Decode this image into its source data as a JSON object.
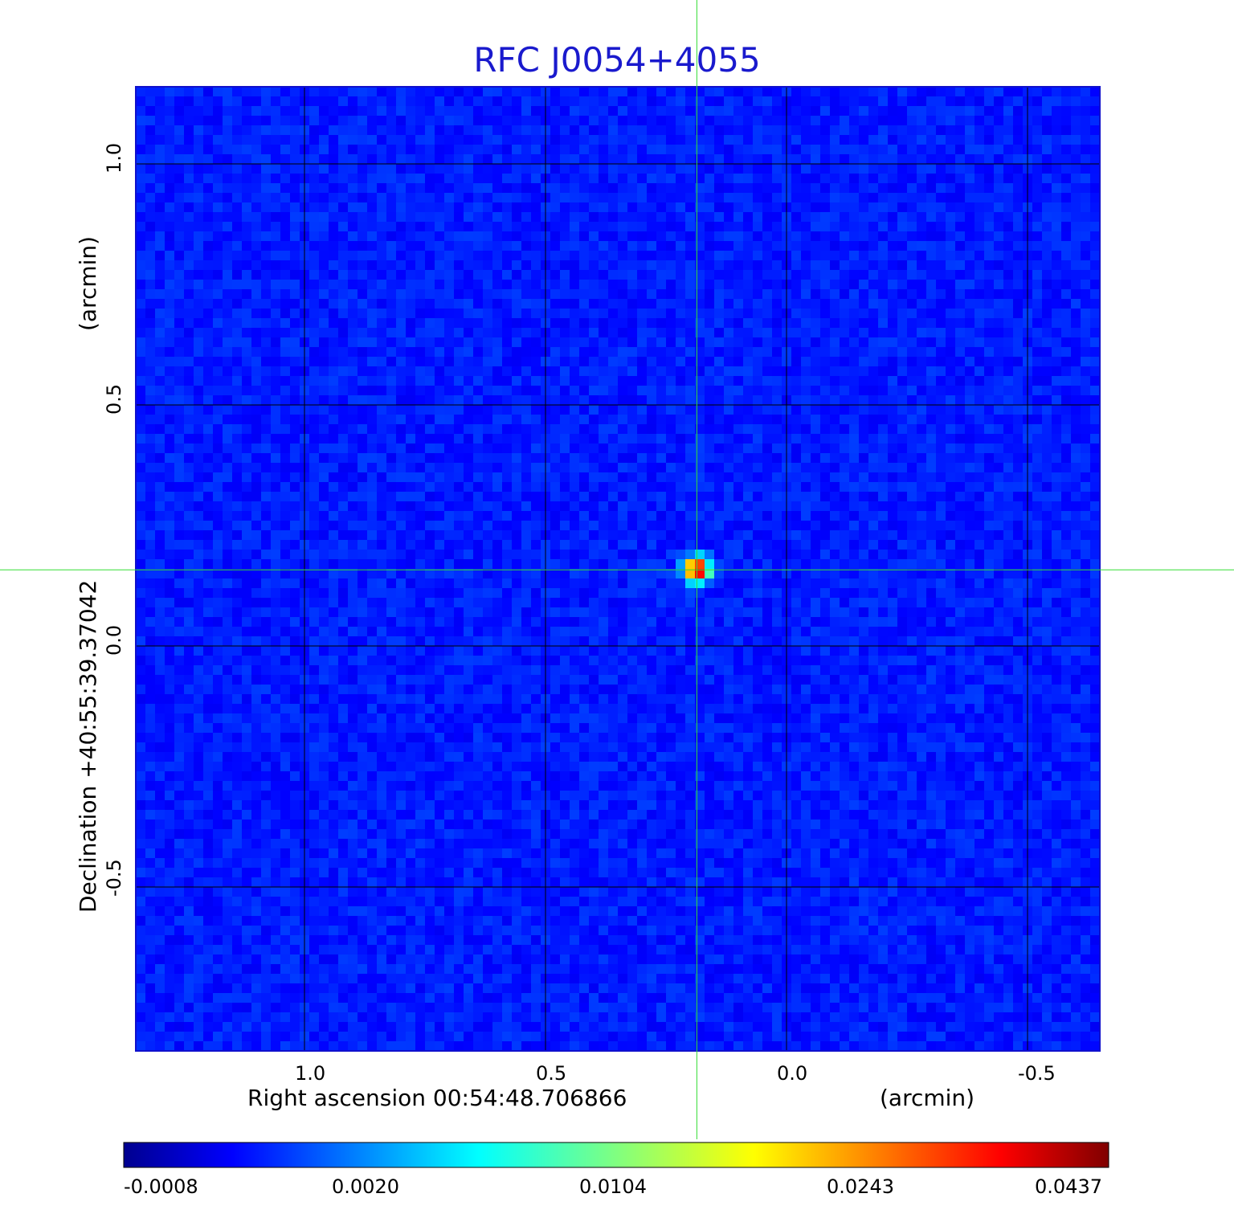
{
  "chart_data": {
    "type": "heatmap",
    "title": "RFC J0054+4055",
    "xlabel": "Right ascension  00:54:48.706866",
    "xunit": "(arcmin)",
    "ylabel": "Declination  +40:55:39.37042",
    "yunit": "(arcmin)",
    "xlim": [
      1.35,
      -0.65
    ],
    "ylim": [
      -0.84,
      1.16
    ],
    "xticks": [
      "1.0",
      "0.5",
      "0.0",
      "-0.5"
    ],
    "xtick_values": [
      1.0,
      0.5,
      0.0,
      -0.5
    ],
    "yticks": [
      "-0.5",
      "0.0",
      "0.5",
      "1.0"
    ],
    "ytick_values": [
      -0.5,
      0.0,
      0.5,
      1.0
    ],
    "grid": true,
    "crosshair": {
      "x": 0.186,
      "y": 0.158,
      "color": "#33dd33"
    },
    "source_peak": {
      "x": 0.186,
      "y": 0.158,
      "value": 0.0437
    },
    "colormap": "jet",
    "colorbar": {
      "ticks": [
        "-0.0008",
        "0.0020",
        "0.0104",
        "0.0243",
        "0.0437"
      ],
      "min": -0.0008,
      "max": 0.0437
    }
  }
}
